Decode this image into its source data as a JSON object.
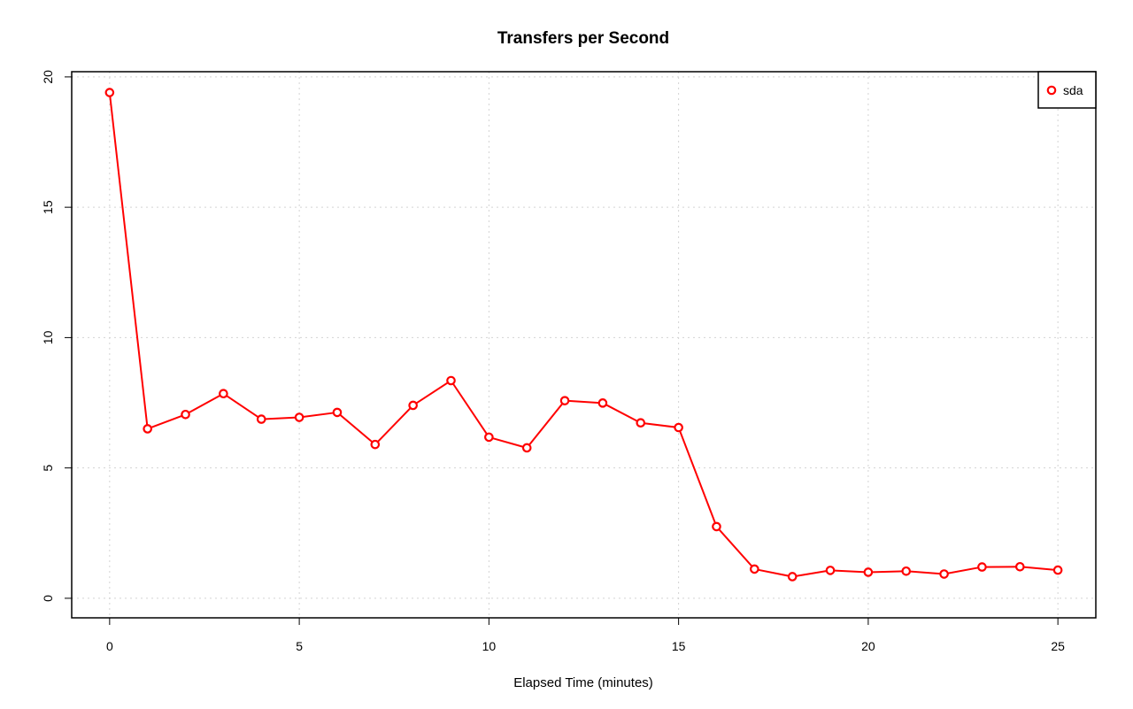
{
  "chart_data": {
    "type": "line",
    "title": "Transfers per Second",
    "xlabel": "Elapsed Time (minutes)",
    "ylabel": "",
    "xlim": [
      -1,
      26
    ],
    "ylim": [
      -0.75,
      20.2
    ],
    "x_ticks": [
      "0",
      "5",
      "10",
      "15",
      "20",
      "25"
    ],
    "y_ticks": [
      "0",
      "5",
      "10",
      "15",
      "20"
    ],
    "grid": true,
    "legend_position": "top-right",
    "series": [
      {
        "name": "sda",
        "color": "#ff0000",
        "marker": "open-circle",
        "x": [
          0,
          1,
          2,
          3,
          4,
          5,
          6,
          7,
          8,
          9,
          10,
          11,
          12,
          13,
          14,
          15,
          16,
          17,
          18,
          19,
          20,
          21,
          22,
          23,
          24,
          25
        ],
        "y": [
          19.4,
          6.5,
          7.05,
          7.85,
          6.87,
          6.94,
          7.13,
          5.9,
          7.4,
          8.35,
          6.18,
          5.77,
          7.58,
          7.49,
          6.73,
          6.55,
          2.75,
          1.12,
          0.83,
          1.07,
          1.0,
          1.04,
          0.93,
          1.2,
          1.21,
          1.08
        ]
      }
    ]
  }
}
